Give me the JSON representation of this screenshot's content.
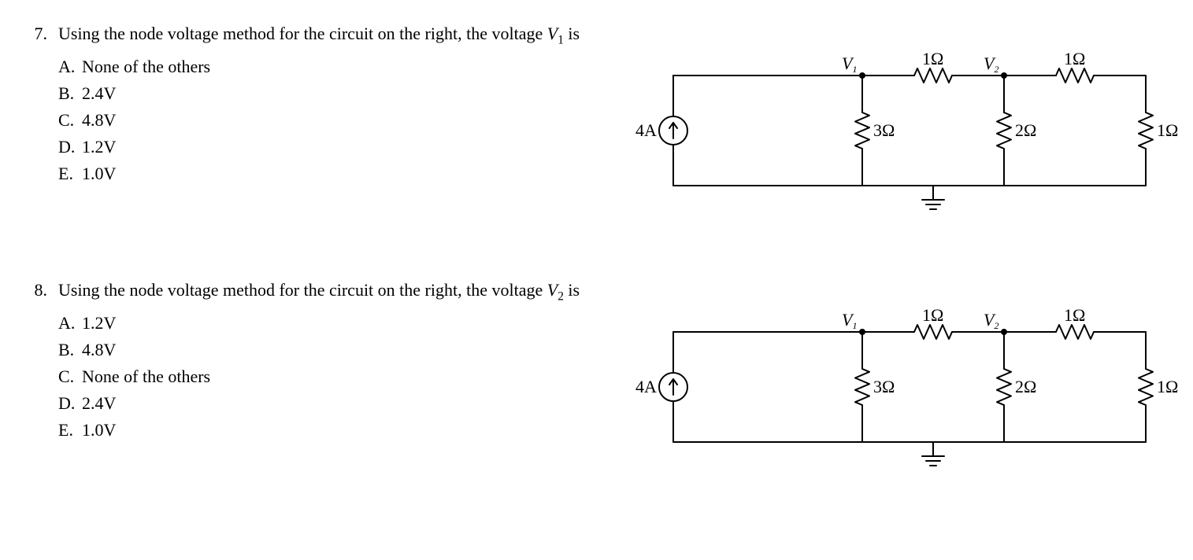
{
  "questions": [
    {
      "number": "7.",
      "prompt_pre": "Using the node voltage method for the circuit on the right, the voltage ",
      "prompt_sym": "V",
      "prompt_sub": "1",
      "prompt_post": " is",
      "options": [
        {
          "letter": "A.",
          "text": "None of the others"
        },
        {
          "letter": "B.",
          "text": "2.4V"
        },
        {
          "letter": "C.",
          "text": "4.8V"
        },
        {
          "letter": "D.",
          "text": "1.2V"
        },
        {
          "letter": "E.",
          "text": "1.0V"
        }
      ],
      "circuit": {
        "source_label": "4A",
        "node1_label": "V",
        "node1_sub": "1",
        "node2_label": "V",
        "node2_sub": "2",
        "r_top1": "1Ω",
        "r_top2": "1Ω",
        "r_v1": "3Ω",
        "r_v2": "2Ω",
        "r_v3": "1Ω",
        "stroke": "#000000",
        "stroke_width": 2,
        "font_size": 22,
        "font_size_sub": 12,
        "font_family": "Times New Roman, Times, serif"
      }
    },
    {
      "number": "8.",
      "prompt_pre": "Using the node voltage method for the circuit on the right, the voltage ",
      "prompt_sym": "V",
      "prompt_sub": "2",
      "prompt_post": " is",
      "options": [
        {
          "letter": "A.",
          "text": "1.2V"
        },
        {
          "letter": "B.",
          "text": "4.8V"
        },
        {
          "letter": "C.",
          "text": "None of the others"
        },
        {
          "letter": "D.",
          "text": "2.4V"
        },
        {
          "letter": "E.",
          "text": "1.0V"
        }
      ],
      "circuit": {
        "source_label": "4A",
        "node1_label": "V",
        "node1_sub": "1",
        "node2_label": "V",
        "node2_sub": "2",
        "r_top1": "1Ω",
        "r_top2": "1Ω",
        "r_v1": "3Ω",
        "r_v2": "2Ω",
        "r_v3": "1Ω",
        "stroke": "#000000",
        "stroke_width": 2,
        "font_size": 22,
        "font_size_sub": 12,
        "font_family": "Times New Roman, Times, serif"
      }
    }
  ]
}
